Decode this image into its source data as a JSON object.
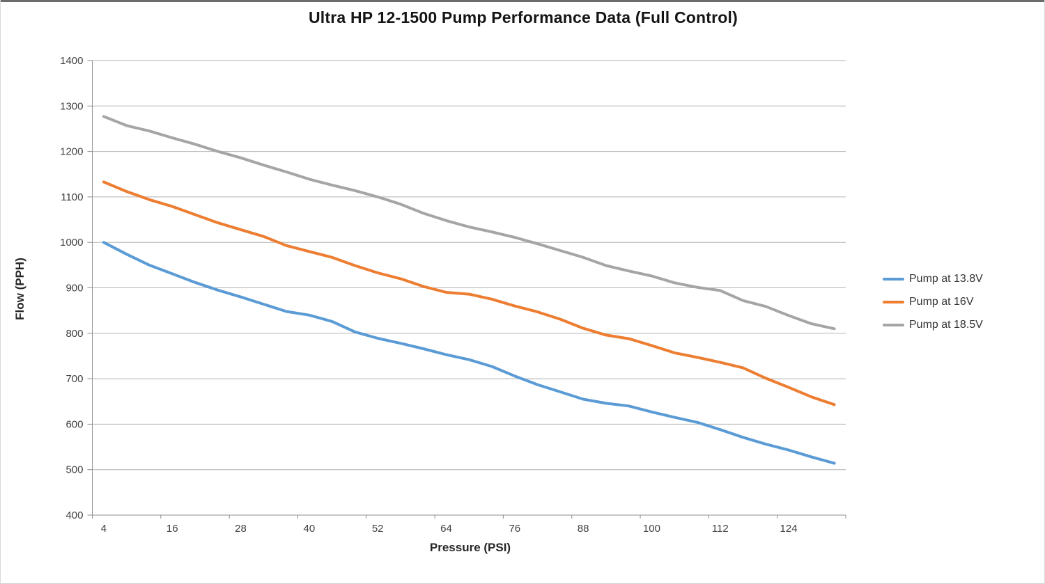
{
  "chart_data": {
    "type": "line",
    "title": "Ultra HP 12-1500 Pump Performance Data (Full Control)",
    "xlabel": "Pressure (PSI)",
    "ylabel": "Flow (PPH)",
    "x": [
      4,
      8,
      12,
      16,
      20,
      24,
      28,
      32,
      36,
      40,
      44,
      48,
      52,
      56,
      60,
      64,
      68,
      72,
      76,
      80,
      84,
      88,
      92,
      96,
      100,
      104,
      108,
      112,
      116,
      120,
      124,
      128,
      132
    ],
    "x_tick_labels": [
      "4",
      "16",
      "28",
      "40",
      "52",
      "64",
      "76",
      "88",
      "100",
      "112",
      "124"
    ],
    "x_label_interval": 3,
    "ylim": [
      400,
      1400
    ],
    "y_ticks": [
      400,
      500,
      600,
      700,
      800,
      900,
      1000,
      1100,
      1200,
      1300,
      1400
    ],
    "grid": true,
    "legend_position": "right",
    "series": [
      {
        "name": "Pump at 13.8V",
        "color": "#5B9BD5",
        "values": [
          1000,
          974,
          950,
          931,
          912,
          895,
          880,
          864,
          848,
          840,
          826,
          803,
          789,
          778,
          766,
          753,
          742,
          727,
          706,
          687,
          671,
          655,
          646,
          640,
          627,
          615,
          604,
          588,
          571,
          556,
          543,
          528,
          514
        ]
      },
      {
        "name": "Pump at 16V",
        "color": "#ED7D31",
        "values": [
          1133,
          1112,
          1094,
          1079,
          1061,
          1043,
          1028,
          1013,
          993,
          980,
          967,
          949,
          933,
          920,
          903,
          890,
          886,
          875,
          860,
          847,
          831,
          811,
          796,
          788,
          773,
          757,
          747,
          736,
          724,
          701,
          681,
          660,
          643
        ]
      },
      {
        "name": "Pump at 18.5V",
        "color": "#A5A5A5",
        "values": [
          1277,
          1257,
          1245,
          1230,
          1216,
          1200,
          1186,
          1170,
          1155,
          1139,
          1126,
          1114,
          1100,
          1084,
          1064,
          1048,
          1034,
          1023,
          1011,
          997,
          982,
          967,
          949,
          937,
          926,
          911,
          901,
          894,
          872,
          859,
          839,
          821,
          810
        ]
      }
    ],
    "style": {
      "gridline_color": "#b3b3b3",
      "axis_color": "#8c8c8c",
      "tick_label_color": "#3f3f3f",
      "line_width": 4
    }
  }
}
